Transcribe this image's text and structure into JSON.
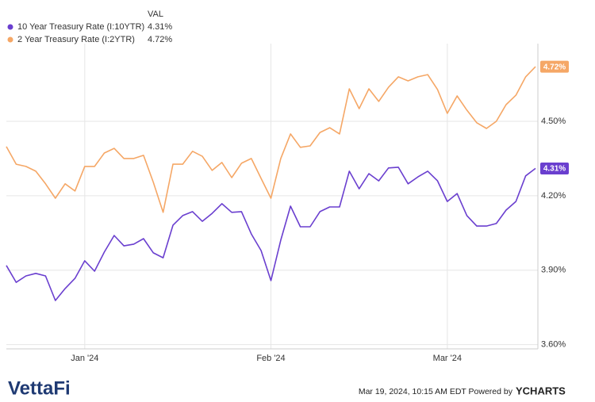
{
  "chart_data": {
    "type": "line",
    "legend_header": "VAL",
    "categories": [
      null,
      null,
      null,
      null,
      null,
      null,
      null,
      null,
      "Jan '24",
      null,
      null,
      null,
      null,
      null,
      null,
      null,
      null,
      null,
      null,
      null,
      null,
      null,
      null,
      null,
      null,
      null,
      null,
      "Feb '24",
      null,
      null,
      null,
      null,
      null,
      null,
      null,
      null,
      null,
      null,
      null,
      null,
      null,
      null,
      null,
      null,
      null,
      "Mar '24",
      null,
      null,
      null,
      null,
      null,
      null,
      null,
      null,
      null
    ],
    "series": [
      {
        "name": "10 Year Treasury Rate (I:10YTR)",
        "color": "#6a3fcf",
        "last_value_label": "4.31%",
        "values": [
          3.919,
          3.851,
          3.877,
          3.887,
          3.877,
          3.778,
          3.826,
          3.867,
          3.938,
          3.896,
          3.973,
          4.04,
          3.998,
          4.005,
          4.027,
          3.97,
          3.95,
          4.081,
          4.12,
          4.136,
          4.097,
          4.129,
          4.168,
          4.133,
          4.136,
          4.046,
          3.979,
          3.858,
          4.021,
          4.158,
          4.075,
          4.075,
          4.136,
          4.155,
          4.155,
          4.299,
          4.228,
          4.289,
          4.26,
          4.312,
          4.315,
          4.248,
          4.276,
          4.299,
          4.26,
          4.177,
          4.209,
          4.12,
          4.078,
          4.078,
          4.088,
          4.142,
          4.177,
          4.28,
          4.31
        ]
      },
      {
        "name": "2 Year Treasury Rate (I:2YTR)",
        "color": "#f5a766",
        "last_value_label": "4.72%",
        "values": [
          4.398,
          4.327,
          4.318,
          4.299,
          4.248,
          4.19,
          4.248,
          4.219,
          4.318,
          4.318,
          4.372,
          4.391,
          4.35,
          4.35,
          4.363,
          4.254,
          4.133,
          4.327,
          4.327,
          4.379,
          4.359,
          4.302,
          4.334,
          4.273,
          4.331,
          4.35,
          4.27,
          4.19,
          4.35,
          4.449,
          4.395,
          4.401,
          4.455,
          4.474,
          4.449,
          4.631,
          4.551,
          4.631,
          4.58,
          4.637,
          4.679,
          4.663,
          4.679,
          4.688,
          4.628,
          4.532,
          4.602,
          4.545,
          4.494,
          4.471,
          4.5,
          4.567,
          4.605,
          4.679,
          4.72
        ]
      }
    ],
    "ylim": [
      3.583,
      4.813
    ],
    "yticks": [
      {
        "value": 3.6,
        "label": "3.60%"
      },
      {
        "value": 3.9,
        "label": "3.90%"
      },
      {
        "value": 4.2,
        "label": "4.20%"
      },
      {
        "value": 4.5,
        "label": "4.50%"
      }
    ],
    "grid": true
  },
  "footer": {
    "brand": "VettaFi",
    "timestamp": "Mar 19, 2024, 10:15 AM EDT Powered by",
    "provider": "YCHARTS"
  }
}
